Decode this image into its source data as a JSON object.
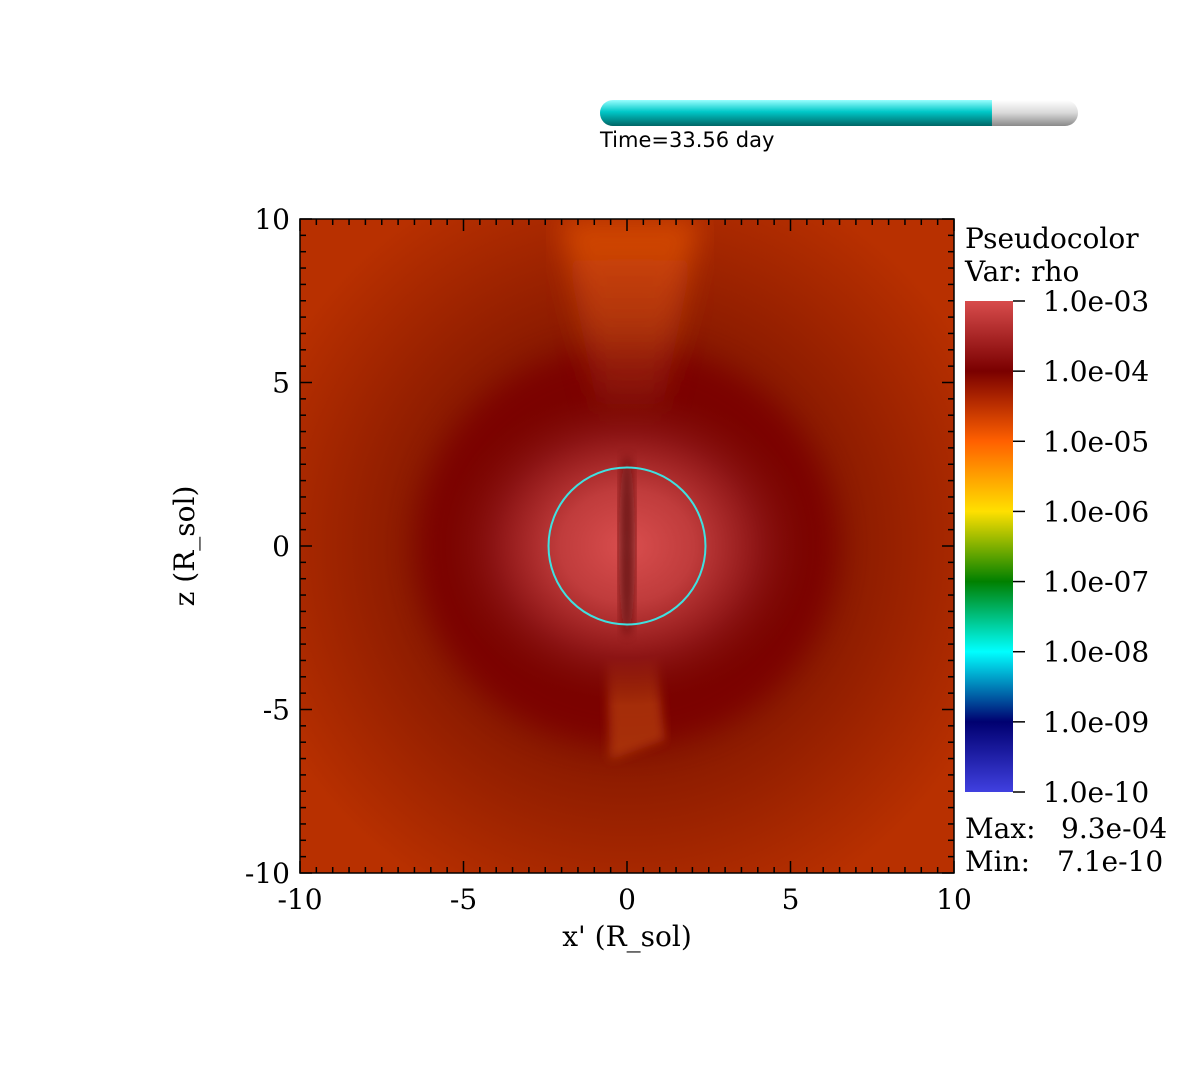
{
  "time_slider": {
    "label": "Time=33.56 day",
    "progress": 0.82,
    "fill_color": "#00c8c8",
    "track_color": "#d0d0d0"
  },
  "chart_data": {
    "type": "heatmap",
    "xlabel": "x' (R_sol)",
    "ylabel": "z (R_sol)",
    "xlim": [
      -10,
      10
    ],
    "ylim": [
      -10,
      10
    ],
    "x_ticks": [
      -10,
      -5,
      0,
      5,
      10
    ],
    "y_ticks": [
      -10,
      -5,
      0,
      5,
      10
    ],
    "x_tick_labels": [
      "-10",
      "-5",
      "0",
      "5",
      "10"
    ],
    "y_tick_labels": [
      "-10",
      "-5",
      "0",
      "5",
      "10"
    ],
    "circle": {
      "center": [
        0,
        0
      ],
      "radius": 2.4,
      "color": "#40e0e0"
    },
    "legend": {
      "title": "Pseudocolor",
      "var": "Var: rho",
      "scale": "log",
      "labels": [
        "1.0e-03",
        "1.0e-04",
        "1.0e-05",
        "1.0e-06",
        "1.0e-07",
        "1.0e-08",
        "1.0e-09",
        "1.0e-10"
      ],
      "max_label": "Max:",
      "max_value": "9.3e-04",
      "min_label": "Min:",
      "min_value": "7.1e-10",
      "colors": [
        "#d84c4c",
        "#7a0000",
        "#ff6000",
        "#ffe000",
        "#008000",
        "#00ffff",
        "#000070",
        "#4040e0"
      ]
    }
  }
}
